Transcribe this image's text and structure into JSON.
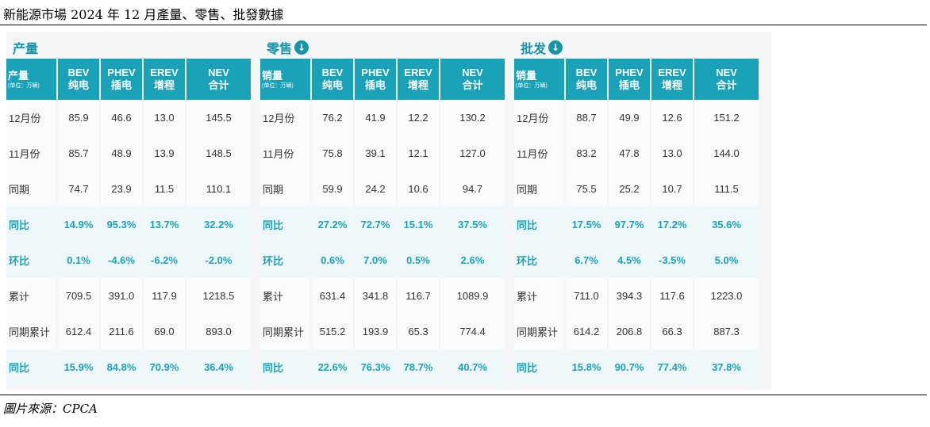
{
  "document": {
    "title": "新能源市場 2024 年 12 月產量、零售、批發數據",
    "source": "圖片來源：CPCA"
  },
  "header": {
    "bev": {
      "l1": "BEV",
      "l2": "纯电"
    },
    "phev": {
      "l1": "PHEV",
      "l2": "插电"
    },
    "erev": {
      "l1": "EREV",
      "l2": "增程"
    },
    "nev": {
      "l1": "NEV",
      "l2": "合计"
    },
    "unit": "(单位：万辆)"
  },
  "watermark": "CPCA",
  "panels": [
    {
      "title": "产量",
      "first_header": "产量",
      "rows": [
        {
          "label": "12月份",
          "bev": "85.9",
          "phev": "46.6",
          "erev": "13.0",
          "nev": "145.5"
        },
        {
          "label": "11月份",
          "bev": "85.7",
          "phev": "48.9",
          "erev": "13.9",
          "nev": "148.5"
        },
        {
          "label": "同期",
          "bev": "74.7",
          "phev": "23.9",
          "erev": "11.5",
          "nev": "110.1"
        },
        {
          "label": "同比",
          "bev": "14.9%",
          "phev": "95.3%",
          "erev": "13.7%",
          "nev": "32.2%"
        },
        {
          "label": "环比",
          "bev": "0.1%",
          "phev": "-4.6%",
          "erev": "-6.2%",
          "nev": "-2.0%"
        },
        {
          "label": "累计",
          "bev": "709.5",
          "phev": "391.0",
          "erev": "117.9",
          "nev": "1218.5"
        },
        {
          "label": "同期累计",
          "bev": "612.4",
          "phev": "211.6",
          "erev": "69.0",
          "nev": "893.0"
        },
        {
          "label": "同比",
          "bev": "15.9%",
          "phev": "84.8%",
          "erev": "70.9%",
          "nev": "36.4%"
        }
      ]
    },
    {
      "title": "零售",
      "first_header": "销量",
      "rows": [
        {
          "label": "12月份",
          "bev": "76.2",
          "phev": "41.9",
          "erev": "12.2",
          "nev": "130.2"
        },
        {
          "label": "11月份",
          "bev": "75.8",
          "phev": "39.1",
          "erev": "12.1",
          "nev": "127.0"
        },
        {
          "label": "同期",
          "bev": "59.9",
          "phev": "24.2",
          "erev": "10.6",
          "nev": "94.7"
        },
        {
          "label": "同比",
          "bev": "27.2%",
          "phev": "72.7%",
          "erev": "15.1%",
          "nev": "37.5%"
        },
        {
          "label": "环比",
          "bev": "0.6%",
          "phev": "7.0%",
          "erev": "0.5%",
          "nev": "2.6%"
        },
        {
          "label": "累计",
          "bev": "631.4",
          "phev": "341.8",
          "erev": "116.7",
          "nev": "1089.9"
        },
        {
          "label": "同期累计",
          "bev": "515.2",
          "phev": "193.9",
          "erev": "65.3",
          "nev": "774.4"
        },
        {
          "label": "同比",
          "bev": "22.6%",
          "phev": "76.3%",
          "erev": "78.7%",
          "nev": "40.7%"
        }
      ]
    },
    {
      "title": "批发",
      "first_header": "销量",
      "rows": [
        {
          "label": "12月份",
          "bev": "88.7",
          "phev": "49.9",
          "erev": "12.6",
          "nev": "151.2"
        },
        {
          "label": "11月份",
          "bev": "83.2",
          "phev": "47.8",
          "erev": "13.0",
          "nev": "144.0"
        },
        {
          "label": "同期",
          "bev": "75.5",
          "phev": "25.2",
          "erev": "10.7",
          "nev": "111.5"
        },
        {
          "label": "同比",
          "bev": "17.5%",
          "phev": "97.7%",
          "erev": "17.2%",
          "nev": "35.6%"
        },
        {
          "label": "环比",
          "bev": "6.7%",
          "phev": "4.5%",
          "erev": "-3.5%",
          "nev": "5.0%"
        },
        {
          "label": "累计",
          "bev": "711.0",
          "phev": "394.3",
          "erev": "117.6",
          "nev": "1223.0"
        },
        {
          "label": "同期累计",
          "bev": "614.2",
          "phev": "206.8",
          "erev": "66.3",
          "nev": "887.3"
        },
        {
          "label": "同比",
          "bev": "15.8%",
          "phev": "90.7%",
          "erev": "77.4%",
          "nev": "37.8%"
        }
      ]
    }
  ]
}
